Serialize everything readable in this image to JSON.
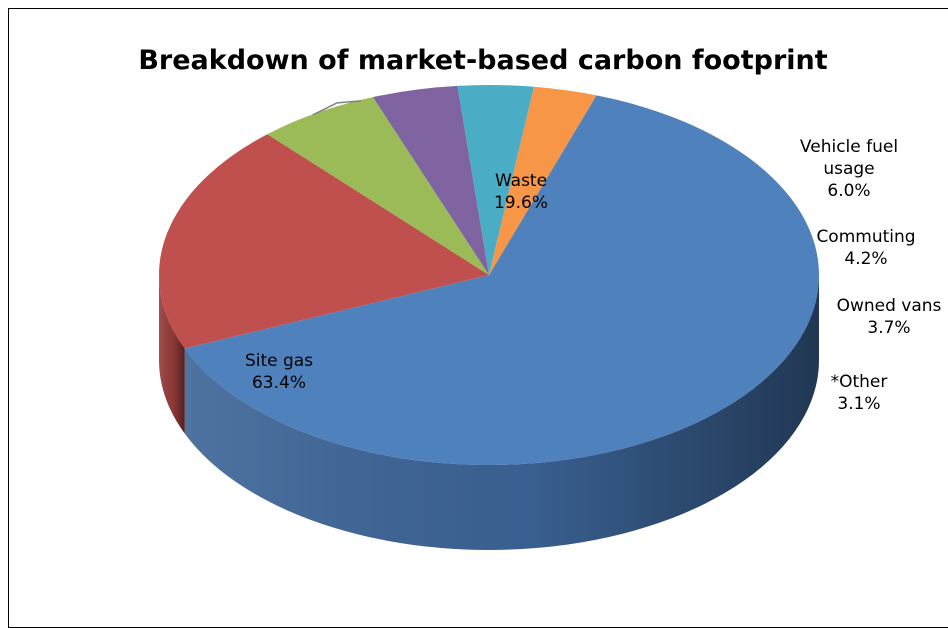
{
  "chart_data": {
    "type": "pie",
    "title": "Breakdown of market-based carbon footprint",
    "slices": [
      {
        "label": "Site gas",
        "value": 63.4,
        "value_text": "63.4%",
        "color": "#4F81BD",
        "side_color": "#3C6497"
      },
      {
        "label": "Waste",
        "value": 19.6,
        "value_text": "19.6%",
        "color": "#C0504D",
        "side_color": "#943C3A"
      },
      {
        "label": "Vehicle fuel usage",
        "value": 6.0,
        "value_text": "6.0%",
        "color": "#9BBB59",
        "side_color": "#76923F"
      },
      {
        "label": "Commuting",
        "value": 4.2,
        "value_text": "4.2%",
        "color": "#8064A2",
        "side_color": "#5F4A79"
      },
      {
        "label": "Owned vans",
        "value": 3.7,
        "value_text": "3.7%",
        "color": "#4BACC6",
        "side_color": "#33839A"
      },
      {
        "label": "*Other",
        "value": 3.1,
        "value_text": "3.1%",
        "color": "#F79646",
        "side_color": "#C06E26"
      }
    ],
    "label_lines": [
      {
        "slice": 0,
        "lines": [
          "Site gas",
          "63.4%"
        ]
      },
      {
        "slice": 1,
        "lines": [
          "Waste",
          "19.6%"
        ]
      },
      {
        "slice": 2,
        "lines": [
          "Vehicle fuel",
          "usage",
          "6.0%"
        ]
      },
      {
        "slice": 3,
        "lines": [
          "Commuting",
          "4.2%"
        ]
      },
      {
        "slice": 4,
        "lines": [
          "Owned vans",
          "3.7%"
        ]
      },
      {
        "slice": 5,
        "lines": [
          "*Other",
          "3.1%"
        ]
      }
    ]
  }
}
